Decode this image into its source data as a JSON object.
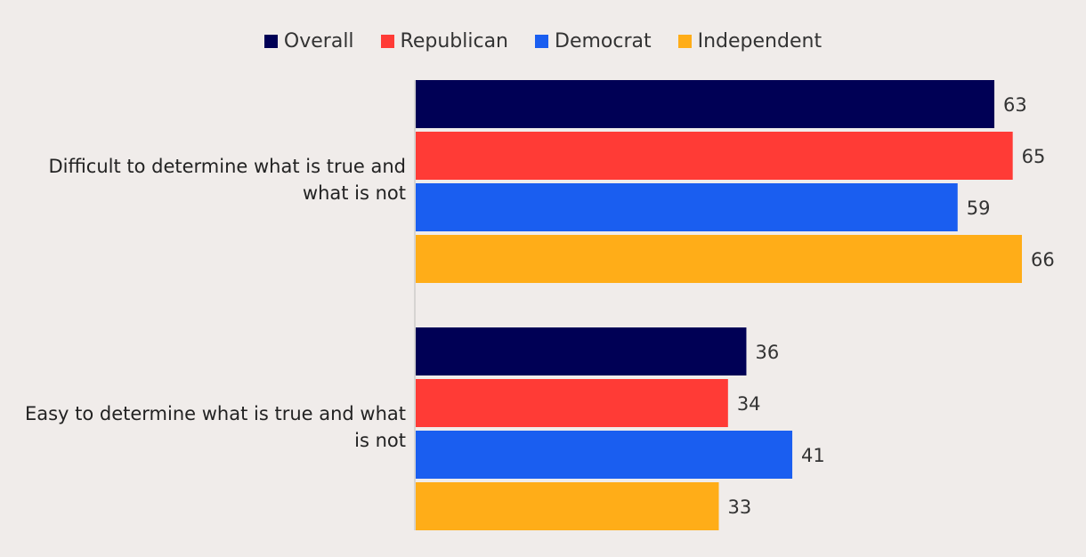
{
  "chart_data": {
    "type": "bar",
    "orientation": "horizontal",
    "categories": [
      "Difficult to determine what is true and what is not",
      "Easy to determine what is true and what is not"
    ],
    "series": [
      {
        "name": "Overall",
        "color": "#000055",
        "values": [
          63,
          36
        ]
      },
      {
        "name": "Republican",
        "color": "#ff3b36",
        "values": [
          65,
          34
        ]
      },
      {
        "name": "Democrat",
        "color": "#1a5ef0",
        "values": [
          59,
          41
        ]
      },
      {
        "name": "Independent",
        "color": "#ffad18",
        "values": [
          66,
          33
        ]
      }
    ],
    "xlim": [
      0,
      66
    ],
    "title": "",
    "xlabel": "",
    "ylabel": "",
    "grid": false,
    "legend_position": "top-center"
  }
}
